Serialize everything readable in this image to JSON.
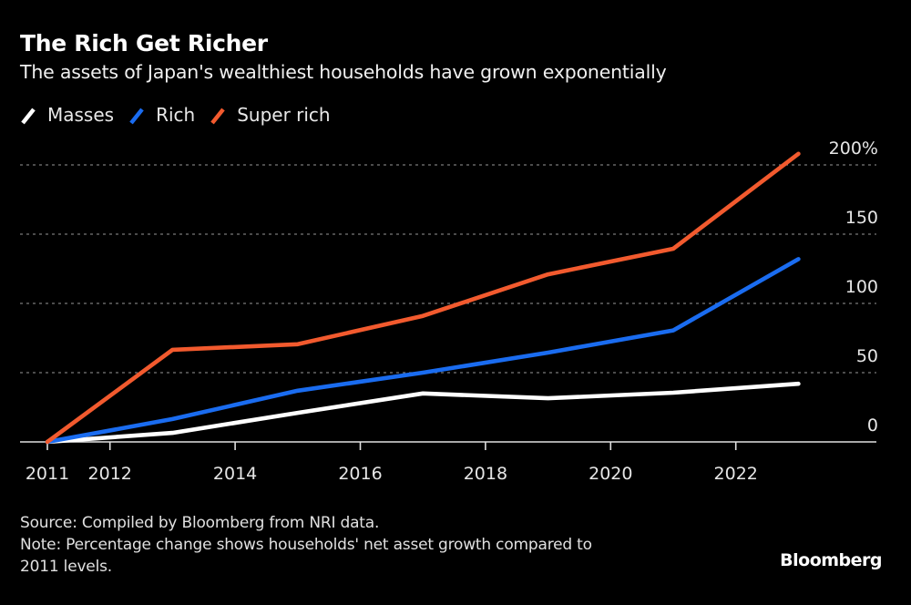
{
  "chart_data": {
    "type": "line",
    "title": "The Rich Get Richer",
    "subtitle": "The assets of Japan's wealthiest households have grown exponentially",
    "xlabel": "",
    "ylabel": "",
    "x": [
      2011,
      2013,
      2015,
      2017,
      2019,
      2021,
      2023
    ],
    "x_ticks": [
      "2011",
      "2012",
      "2014",
      "2016",
      "2018",
      "2020",
      "2022"
    ],
    "x_tick_values": [
      2011,
      2012,
      2014,
      2016,
      2018,
      2020,
      2022
    ],
    "xlim": [
      2011,
      2024.25
    ],
    "y_ticks": [
      "0",
      "50",
      "100",
      "150",
      "200%"
    ],
    "y_tick_values": [
      0,
      50,
      100,
      150,
      200
    ],
    "ylim": [
      0,
      200
    ],
    "grid": true,
    "legend_position": "top-left",
    "series": [
      {
        "name": "Masses",
        "color": "#ffffff",
        "values": [
          0,
          6.5,
          21,
          35,
          31.5,
          35.5,
          42
        ]
      },
      {
        "name": "Rich",
        "color": "#1a6cf0",
        "values": [
          0,
          16.5,
          37,
          50,
          64.5,
          80.5,
          132
        ]
      },
      {
        "name": "Super rich",
        "color": "#f25a2e",
        "values": [
          0,
          66.5,
          70.5,
          91,
          121,
          139.5,
          208
        ]
      }
    ]
  },
  "footer": {
    "source": "Source: Compiled by Bloomberg from NRI data.",
    "note_line1": "Note: Percentage change shows households' net asset growth compared to",
    "note_line2": "2011 levels."
  },
  "brand": "Bloomberg"
}
